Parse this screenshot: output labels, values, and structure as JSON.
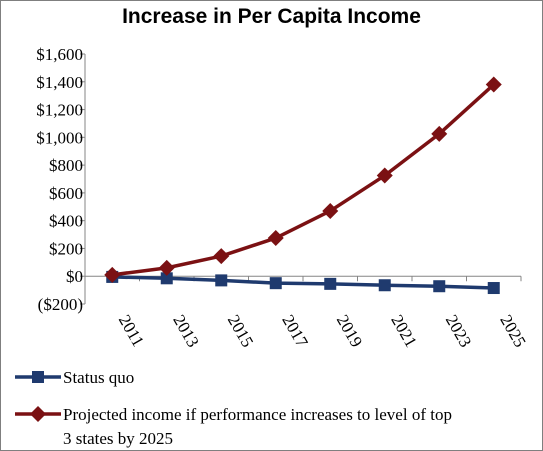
{
  "chart_data": {
    "type": "line",
    "title": "Increase in Per Capita Income",
    "xlabel": "",
    "ylabel": "",
    "categories": [
      "2011",
      "2013",
      "2015",
      "2017",
      "2019",
      "2021",
      "2023",
      "2025"
    ],
    "ylim": [
      -200,
      1600
    ],
    "y_ticks": [
      "$1,600",
      "$1,400",
      "$1,200",
      "$1,000",
      "$800",
      "$600",
      "$400",
      "$200",
      "$0",
      "($200)"
    ],
    "y_tick_values": [
      1600,
      1400,
      1200,
      1000,
      800,
      600,
      400,
      200,
      0,
      -200
    ],
    "grid": false,
    "legend_position": "bottom",
    "series": [
      {
        "name": "Status quo",
        "color": "#1f3a6e",
        "marker": "square",
        "values": [
          -5,
          -15,
          -30,
          -50,
          -55,
          -65,
          -72,
          -85
        ]
      },
      {
        "name": "Projected income if performance increases to level of top 3 states by 2025",
        "legend_lines": [
          "Projected income if performance increases to level of top",
          "3 states by 2025"
        ],
        "color": "#7b1113",
        "marker": "diamond",
        "values": [
          10,
          60,
          145,
          275,
          470,
          725,
          1025,
          1380
        ]
      }
    ]
  }
}
